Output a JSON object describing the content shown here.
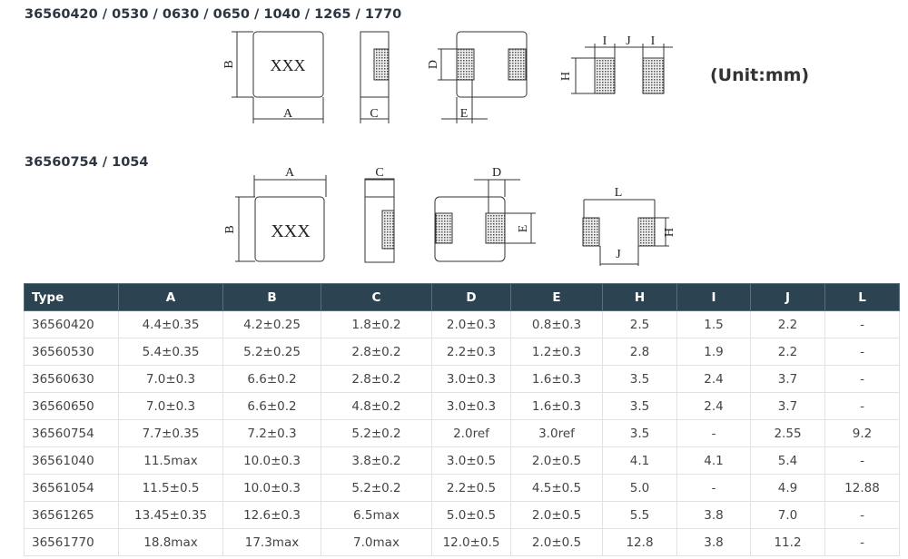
{
  "titles": {
    "group1": "36560420 / 0530 / 0630 / 0650 / 1040 / 1265 / 1770",
    "group2": "36560754 / 1054",
    "unit": "(Unit:mm)"
  },
  "drawing_labels": {
    "marking": "XXX",
    "A": "A",
    "B": "B",
    "C": "C",
    "D": "D",
    "E": "E",
    "H": "H",
    "I": "I",
    "J": "J",
    "L": "L"
  },
  "table": {
    "headers": [
      "Type",
      "A",
      "B",
      "C",
      "D",
      "E",
      "H",
      "I",
      "J",
      "L"
    ],
    "rows": [
      [
        "36560420",
        "4.4±0.35",
        "4.2±0.25",
        "1.8±0.2",
        "2.0±0.3",
        "0.8±0.3",
        "2.5",
        "1.5",
        "2.2",
        "-"
      ],
      [
        "36560530",
        "5.4±0.35",
        "5.2±0.25",
        "2.8±0.2",
        "2.2±0.3",
        "1.2±0.3",
        "2.8",
        "1.9",
        "2.2",
        "-"
      ],
      [
        "36560630",
        "7.0±0.3",
        "6.6±0.2",
        "2.8±0.2",
        "3.0±0.3",
        "1.6±0.3",
        "3.5",
        "2.4",
        "3.7",
        "-"
      ],
      [
        "36560650",
        "7.0±0.3",
        "6.6±0.2",
        "4.8±0.2",
        "3.0±0.3",
        "1.6±0.3",
        "3.5",
        "2.4",
        "3.7",
        "-"
      ],
      [
        "36560754",
        "7.7±0.35",
        "7.2±0.3",
        "5.2±0.2",
        "2.0ref",
        "3.0ref",
        "3.5",
        "-",
        "2.55",
        "9.2"
      ],
      [
        "36561040",
        "11.5max",
        "10.0±0.3",
        "3.8±0.2",
        "3.0±0.5",
        "2.0±0.5",
        "4.1",
        "4.1",
        "5.4",
        "-"
      ],
      [
        "36561054",
        "11.5±0.5",
        "10.0±0.3",
        "5.2±0.2",
        "2.2±0.5",
        "4.5±0.5",
        "5.0",
        "-",
        "4.9",
        "12.88"
      ],
      [
        "36561265",
        "13.45±0.35",
        "12.6±0.3",
        "6.5max",
        "5.0±0.5",
        "2.0±0.5",
        "5.5",
        "3.8",
        "7.0",
        "-"
      ],
      [
        "36561770",
        "18.8max",
        "17.3max",
        "7.0max",
        "12.0±0.5",
        "2.0±0.5",
        "12.8",
        "3.8",
        "11.2",
        "-"
      ]
    ]
  },
  "colors": {
    "header_bg": "#2c4452",
    "header_text": "#ffffff",
    "title": "#2b3642"
  }
}
